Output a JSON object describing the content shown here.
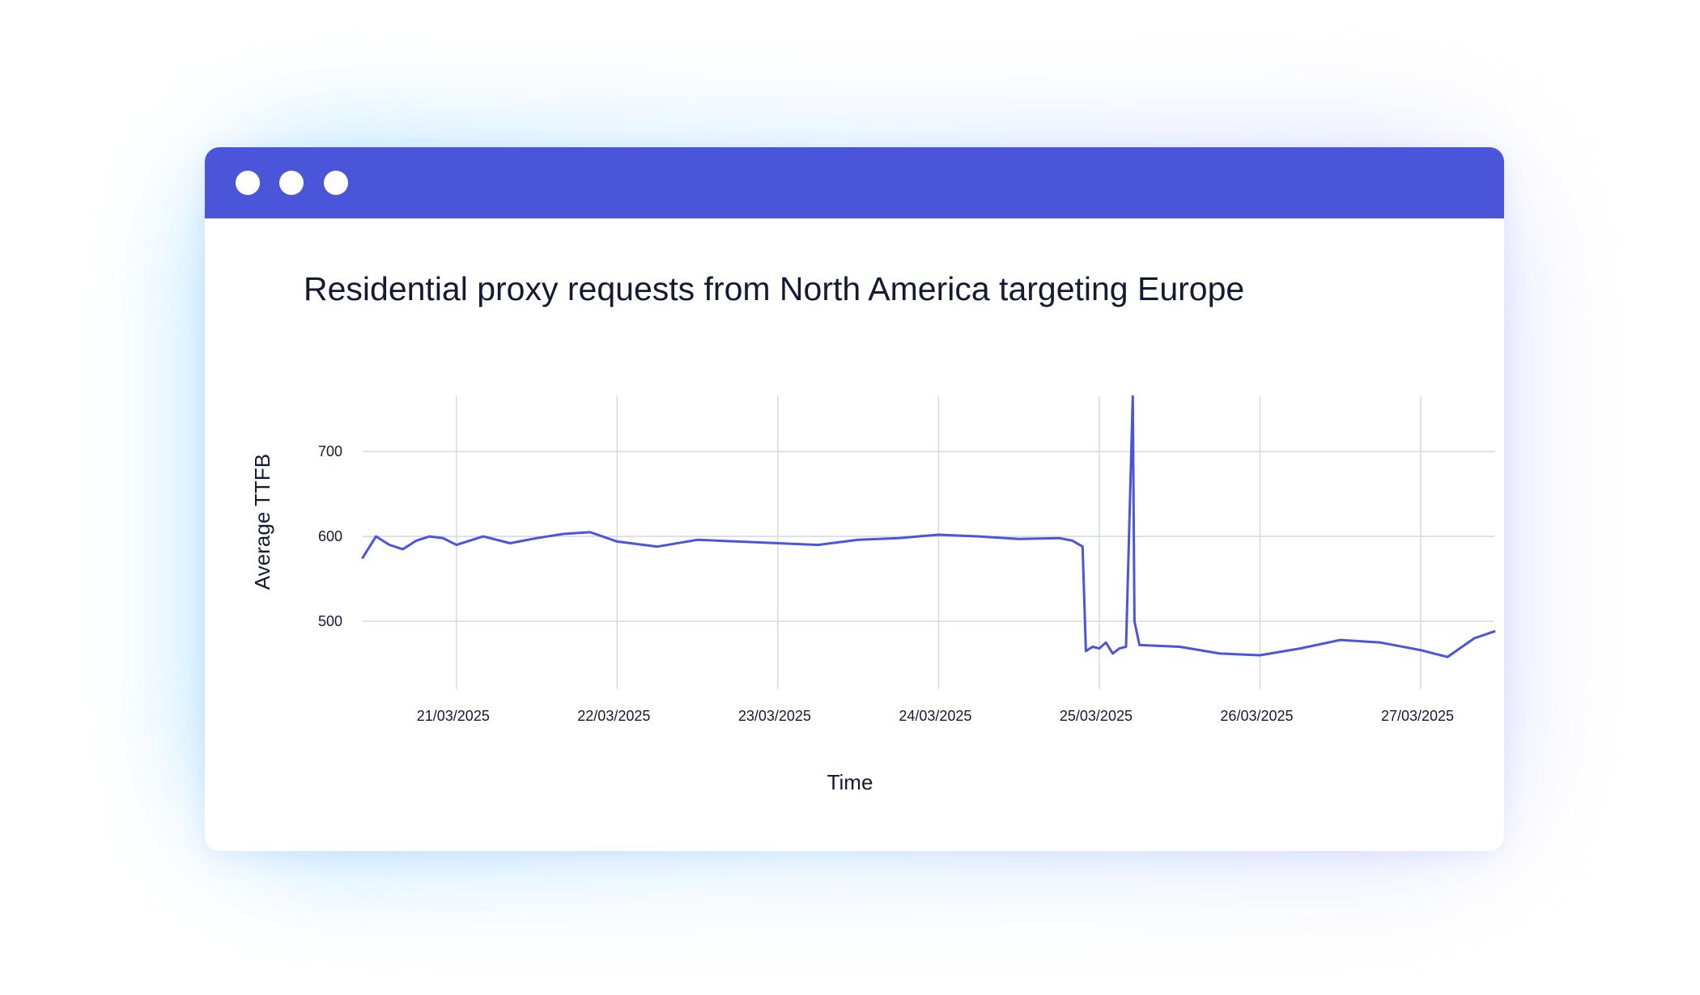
{
  "window": {
    "accent_color": "#4a55d9",
    "controls": [
      "window-dot",
      "window-dot",
      "window-dot"
    ]
  },
  "chart_data": {
    "type": "line",
    "title": "Residential proxy requests from North America targeting Europe",
    "xlabel": "Time",
    "ylabel": "Average TTFB",
    "x_ticks": [
      "21/03/2025",
      "22/03/2025",
      "23/03/2025",
      "24/03/2025",
      "25/03/2025",
      "26/03/2025",
      "27/03/2025"
    ],
    "y_ticks": [
      500,
      600,
      700
    ],
    "ylim": [
      420,
      765
    ],
    "xlim": [
      "20/03/2025 10:00",
      "27/03/2025 11:00"
    ],
    "grid": true,
    "line_color": "#4a55d9",
    "series": [
      {
        "points": [
          [
            "20/03/2025 10:00",
            575
          ],
          [
            "20/03/2025 12:00",
            600
          ],
          [
            "20/03/2025 14:00",
            590
          ],
          [
            "20/03/2025 16:00",
            585
          ],
          [
            "20/03/2025 18:00",
            595
          ],
          [
            "20/03/2025 20:00",
            600
          ],
          [
            "20/03/2025 22:00",
            598
          ],
          [
            "21/03/2025 00:00",
            590
          ],
          [
            "21/03/2025 04:00",
            600
          ],
          [
            "21/03/2025 08:00",
            592
          ],
          [
            "21/03/2025 12:00",
            598
          ],
          [
            "21/03/2025 16:00",
            603
          ],
          [
            "21/03/2025 20:00",
            605
          ],
          [
            "22/03/2025 00:00",
            594
          ],
          [
            "22/03/2025 06:00",
            588
          ],
          [
            "22/03/2025 12:00",
            596
          ],
          [
            "22/03/2025 18:00",
            594
          ],
          [
            "23/03/2025 00:00",
            592
          ],
          [
            "23/03/2025 06:00",
            590
          ],
          [
            "23/03/2025 12:00",
            596
          ],
          [
            "23/03/2025 18:00",
            598
          ],
          [
            "24/03/2025 00:00",
            602
          ],
          [
            "24/03/2025 06:00",
            600
          ],
          [
            "24/03/2025 12:00",
            597
          ],
          [
            "24/03/2025 18:00",
            598
          ],
          [
            "24/03/2025 20:00",
            595
          ],
          [
            "24/03/2025 21:30",
            588
          ],
          [
            "24/03/2025 22:00",
            465
          ],
          [
            "24/03/2025 23:00",
            470
          ],
          [
            "25/03/2025 00:00",
            468
          ],
          [
            "25/03/2025 01:00",
            475
          ],
          [
            "25/03/2025 02:00",
            462
          ],
          [
            "25/03/2025 03:00",
            468
          ],
          [
            "25/03/2025 04:00",
            470
          ],
          [
            "25/03/2025 05:00",
            765
          ],
          [
            "25/03/2025 05:15",
            500
          ],
          [
            "25/03/2025 06:00",
            472
          ],
          [
            "25/03/2025 12:00",
            470
          ],
          [
            "25/03/2025 18:00",
            462
          ],
          [
            "26/03/2025 00:00",
            460
          ],
          [
            "26/03/2025 06:00",
            468
          ],
          [
            "26/03/2025 12:00",
            478
          ],
          [
            "26/03/2025 18:00",
            475
          ],
          [
            "27/03/2025 00:00",
            466
          ],
          [
            "27/03/2025 04:00",
            458
          ],
          [
            "27/03/2025 08:00",
            480
          ],
          [
            "27/03/2025 11:00",
            488
          ]
        ]
      }
    ]
  }
}
